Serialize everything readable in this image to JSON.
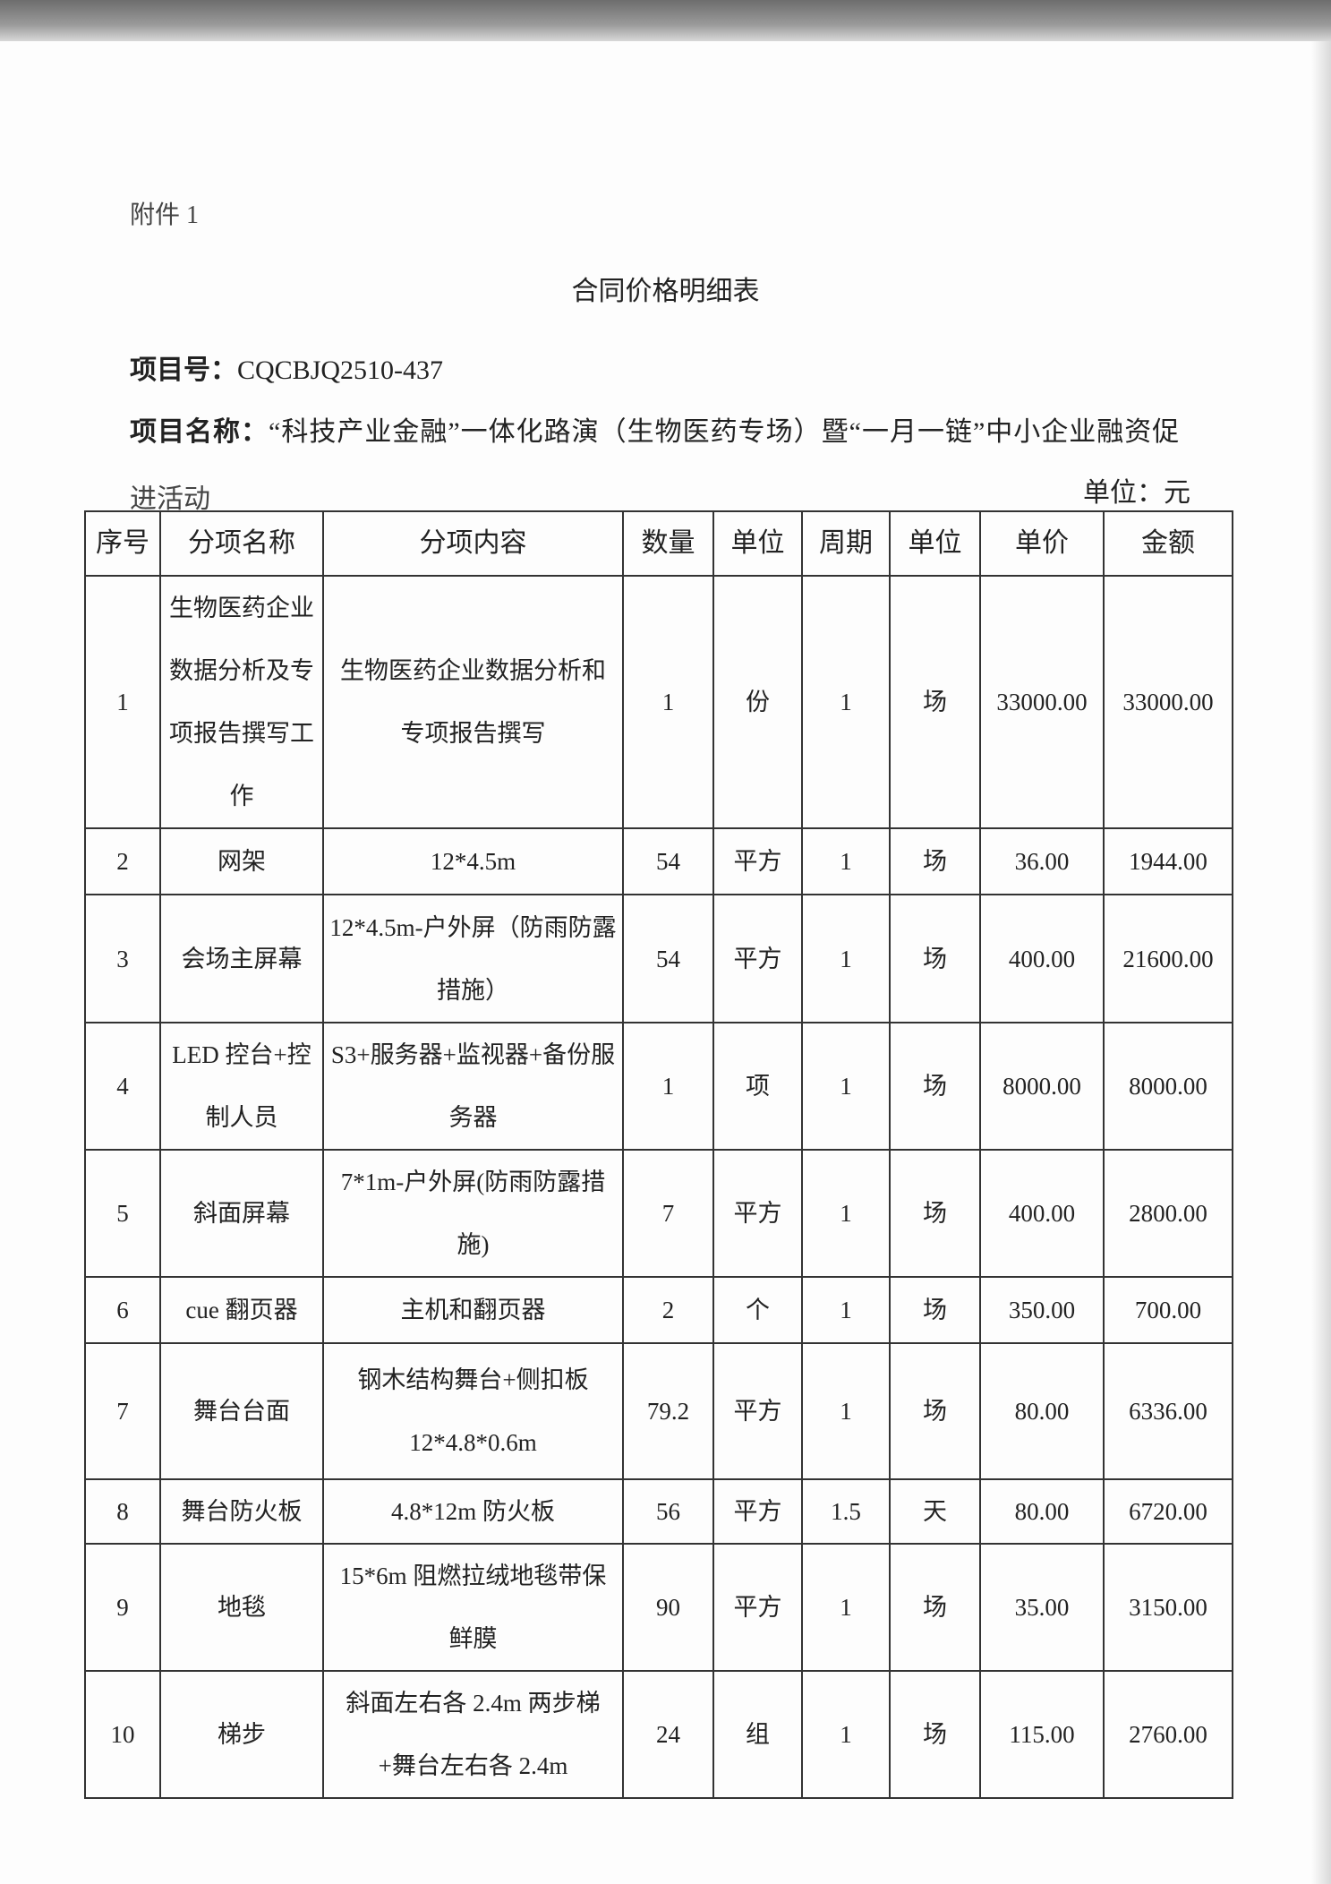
{
  "attachment": "附件 1",
  "title": "合同价格明细表",
  "project_no_label": "项目号：",
  "project_no": "CQCBJQ2510-437",
  "project_name_label": "项目名称：",
  "project_name_line1": "“科技产业金融”一体化路演（生物医药专场）暨“一月一链”中小企业融资促",
  "project_name_line2": "进活动",
  "unit_note": "单位：元",
  "table": {
    "headers": [
      "序号",
      "分项名称",
      "分项内容",
      "数量",
      "单位",
      "周期",
      "单位",
      "单价",
      "金额"
    ],
    "rows": [
      [
        "1",
        "生物医药企业数据分析及专项报告撰写工作",
        "生物医药企业数据分析和专项报告撰写",
        "1",
        "份",
        "1",
        "场",
        "33000.00",
        "33000.00"
      ],
      [
        "2",
        "网架",
        "12*4.5m",
        "54",
        "平方",
        "1",
        "场",
        "36.00",
        "1944.00"
      ],
      [
        "3",
        "会场主屏幕",
        "12*4.5m-户外屏（防雨防露措施）",
        "54",
        "平方",
        "1",
        "场",
        "400.00",
        "21600.00"
      ],
      [
        "4",
        "LED 控台+控制人员",
        "S3+服务器+监视器+备份服务器",
        "1",
        "项",
        "1",
        "场",
        "8000.00",
        "8000.00"
      ],
      [
        "5",
        "斜面屏幕",
        "7*1m-户外屏(防雨防露措施)",
        "7",
        "平方",
        "1",
        "场",
        "400.00",
        "2800.00"
      ],
      [
        "6",
        "cue 翻页器",
        "主机和翻页器",
        "2",
        "个",
        "1",
        "场",
        "350.00",
        "700.00"
      ],
      [
        "7",
        "舞台台面",
        "钢木结构舞台+侧扣板 12*4.8*0.6m",
        "79.2",
        "平方",
        "1",
        "场",
        "80.00",
        "6336.00"
      ],
      [
        "8",
        "舞台防火板",
        "4.8*12m 防火板",
        "56",
        "平方",
        "1.5",
        "天",
        "80.00",
        "6720.00"
      ],
      [
        "9",
        "地毯",
        "15*6m 阻燃拉绒地毯带保鲜膜",
        "90",
        "平方",
        "1",
        "场",
        "35.00",
        "3150.00"
      ],
      [
        "10",
        "梯步",
        "斜面左右各 2.4m 两步梯+舞台左右各 2.4m",
        "24",
        "组",
        "1",
        "场",
        "115.00",
        "2760.00"
      ]
    ]
  }
}
